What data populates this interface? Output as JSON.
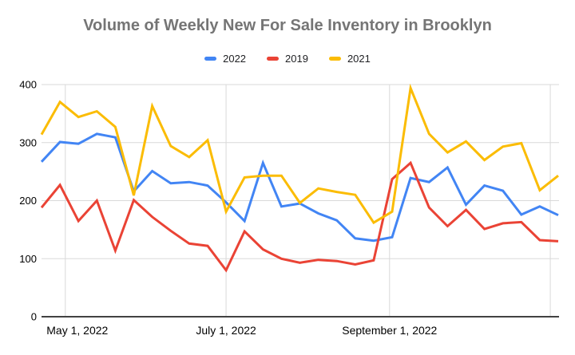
{
  "chart_data": {
    "type": "line",
    "title": "Volume of Weekly New For Sale Inventory in Brooklyn",
    "x_unit": "week_index",
    "x": [
      0,
      1,
      2,
      3,
      4,
      5,
      6,
      7,
      8,
      9,
      10,
      11,
      12,
      13,
      14,
      15,
      16,
      17,
      18,
      19,
      20,
      21,
      22,
      23,
      24,
      25,
      26,
      27,
      28
    ],
    "series": [
      {
        "name": "2022",
        "color": "#4285F4",
        "values": [
          267,
          301,
          298,
          315,
          309,
          216,
          251,
          230,
          232,
          226,
          197,
          165,
          265,
          190,
          195,
          178,
          166,
          135,
          131,
          137,
          239,
          232,
          257,
          193,
          226,
          217,
          176,
          190,
          175
        ]
      },
      {
        "name": "2019",
        "color": "#EA4335",
        "values": [
          188,
          227,
          165,
          200,
          114,
          201,
          172,
          148,
          126,
          122,
          80,
          147,
          116,
          100,
          93,
          98,
          96,
          90,
          97,
          237,
          265,
          188,
          156,
          184,
          151,
          161,
          163,
          132,
          130
        ]
      },
      {
        "name": "2021",
        "color": "#FBBC04",
        "values": [
          314,
          370,
          344,
          354,
          327,
          209,
          363,
          294,
          275,
          304,
          181,
          240,
          243,
          243,
          196,
          221,
          215,
          210,
          162,
          181,
          394,
          315,
          283,
          302,
          270,
          293,
          299,
          218,
          243
        ]
      }
    ],
    "ylim": [
      0,
      400
    ],
    "y_ticks": [
      0,
      100,
      200,
      300,
      400
    ],
    "x_tick_labels": [
      {
        "label": "May 1, 2022",
        "week": 1.29
      },
      {
        "label": "July 1, 2022",
        "week": 10.0
      },
      {
        "label": "September 1, 2022",
        "week": 18.86
      }
    ],
    "x_gridline_weeks": [
      1.29,
      10.0,
      18.86,
      27.57
    ],
    "legend_position": "top",
    "grid": true,
    "colors": {
      "title": "#757575",
      "axis_labels": "#000000",
      "gridline": "#d9d9d9",
      "axis_line": "#424242",
      "background": "#ffffff"
    }
  }
}
